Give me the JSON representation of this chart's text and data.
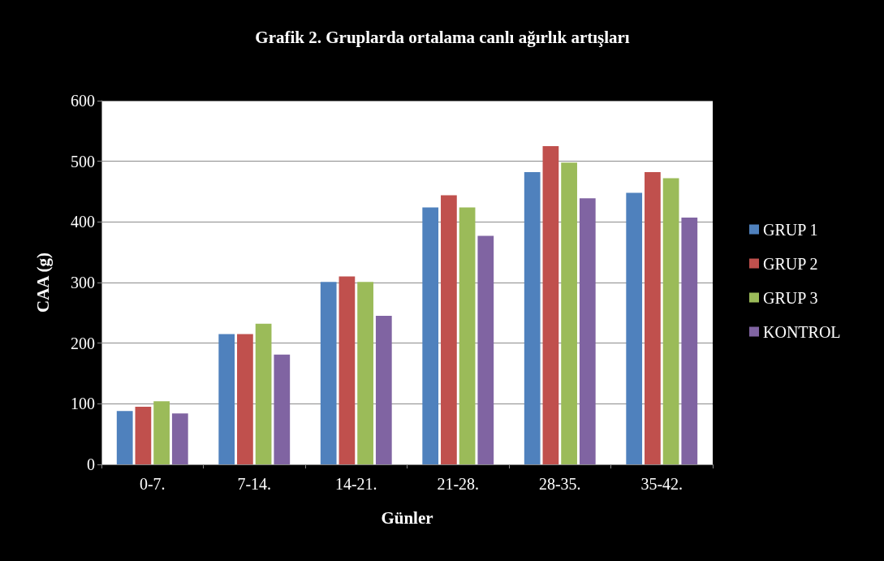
{
  "chart_data": {
    "type": "bar",
    "title": "Grafik 2. Gruplarda ortalama canlı ağırlık artışları",
    "xlabel": "Günler",
    "ylabel": "CAA (g)",
    "categories": [
      "0-7.",
      "7-14.",
      "14-21.",
      "21-28.",
      "28-35.",
      "35-42."
    ],
    "series": [
      {
        "name": "GRUP 1",
        "color": "#4f81bd",
        "values": [
          88,
          215,
          301,
          424,
          482,
          448
        ]
      },
      {
        "name": "GRUP 2",
        "color": "#c0504d",
        "values": [
          95,
          215,
          310,
          444,
          525,
          482
        ]
      },
      {
        "name": "GRUP 3",
        "color": "#9bbb59",
        "values": [
          104,
          232,
          301,
          424,
          498,
          472
        ]
      },
      {
        "name": "KONTROL",
        "color": "#8064a2",
        "values": [
          84,
          181,
          245,
          377,
          439,
          407
        ]
      }
    ],
    "ylim": [
      0,
      600
    ],
    "yticks": [
      0,
      100,
      200,
      300,
      400,
      500,
      600
    ],
    "grid": "y",
    "legend": "right"
  }
}
